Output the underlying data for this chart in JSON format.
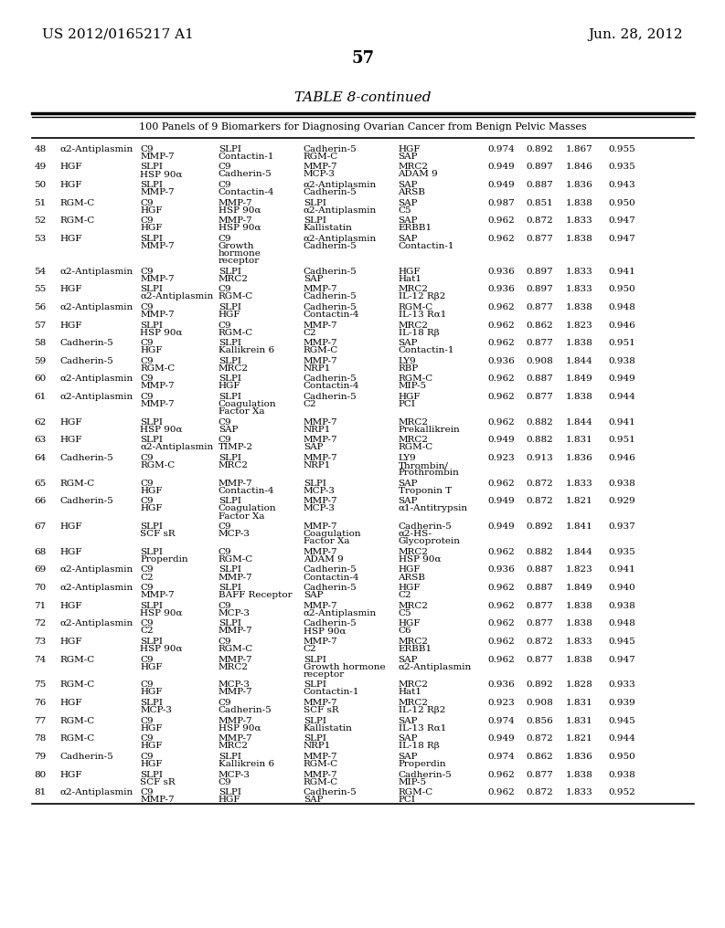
{
  "header_left": "US 2012/0165217 A1",
  "header_right": "Jun. 28, 2012",
  "page_number": "57",
  "table_title": "TABLE 8-continued",
  "table_subtitle": "100 Panels of 9 Biomarkers for Diagnosing Ovarian Cancer from Benign Pelvic Masses",
  "rows": [
    {
      "num": "48",
      "b1": "α2-Antiplasmin",
      "b2": "C9\nMMP-7",
      "b3": "SLPI\nContactin-1",
      "b4": "Cadherin-5\nRGM-C",
      "b5": "HGF\nSAP",
      "v1": "0.974",
      "v2": "0.892",
      "v3": "1.867",
      "v4": "0.955"
    },
    {
      "num": "49",
      "b1": "HGF",
      "b2": "SLPI\nHSP 90α",
      "b3": "C9\nCadherin-5",
      "b4": "MMP-7\nMCP-3",
      "b5": "MRC2\nADAM 9",
      "v1": "0.949",
      "v2": "0.897",
      "v3": "1.846",
      "v4": "0.935"
    },
    {
      "num": "50",
      "b1": "HGF",
      "b2": "SLPI\nMMP-7",
      "b3": "C9\nContactin-4",
      "b4": "α2-Antiplasmin\nCadherin-5",
      "b5": "SAP\nARSB",
      "v1": "0.949",
      "v2": "0.887",
      "v3": "1.836",
      "v4": "0.943"
    },
    {
      "num": "51",
      "b1": "RGM-C",
      "b2": "C9\nHGF",
      "b3": "MMP-7\nHSP 90α",
      "b4": "SLPI\nα2-Antiplasmin",
      "b5": "SAP\nC5",
      "v1": "0.987",
      "v2": "0.851",
      "v3": "1.838",
      "v4": "0.950"
    },
    {
      "num": "52",
      "b1": "RGM-C",
      "b2": "C9\nHGF",
      "b3": "MMP-7\nHSP 90α",
      "b4": "SLPI\nKallistatin",
      "b5": "SAP\nERBB1",
      "v1": "0.962",
      "v2": "0.872",
      "v3": "1.833",
      "v4": "0.947"
    },
    {
      "num": "53",
      "b1": "HGF",
      "b2": "SLPI\nMMP-7",
      "b3": "C9\nGrowth\nhormone\nreceptor",
      "b4": "α2-Antiplasmin\nCadherin-5",
      "b5": "SAP\nContactin-1",
      "v1": "0.962",
      "v2": "0.877",
      "v3": "1.838",
      "v4": "0.947"
    },
    {
      "num": "54",
      "b1": "α2-Antiplasmin",
      "b2": "C9\nMMP-7",
      "b3": "SLPI\nMRC2",
      "b4": "Cadherin-5\nSAP",
      "b5": "HGF\nHat1",
      "v1": "0.936",
      "v2": "0.897",
      "v3": "1.833",
      "v4": "0.941"
    },
    {
      "num": "55",
      "b1": "HGF",
      "b2": "SLPI\nα2-Antiplasmin",
      "b3": "C9\nRGM-C",
      "b4": "MMP-7\nCadherin-5",
      "b5": "MRC2\nIL-12 Rβ2",
      "v1": "0.936",
      "v2": "0.897",
      "v3": "1.833",
      "v4": "0.950"
    },
    {
      "num": "56",
      "b1": "α2-Antiplasmin",
      "b2": "C9\nMMP-7",
      "b3": "SLPI\nHGF",
      "b4": "Cadherin-5\nContactin-4",
      "b5": "RGM-C\nIL-13 Rα1",
      "v1": "0.962",
      "v2": "0.877",
      "v3": "1.838",
      "v4": "0.948"
    },
    {
      "num": "57",
      "b1": "HGF",
      "b2": "SLPI\nHSP 90α",
      "b3": "C9\nRGM-C",
      "b4": "MMP-7\nC2",
      "b5": "MRC2\nIL-18 Rβ",
      "v1": "0.962",
      "v2": "0.862",
      "v3": "1.823",
      "v4": "0.946"
    },
    {
      "num": "58",
      "b1": "Cadherin-5",
      "b2": "C9\nHGF",
      "b3": "SLPI\nKallikrein 6",
      "b4": "MMP-7\nRGM-C",
      "b5": "SAP\nContactin-1",
      "v1": "0.962",
      "v2": "0.877",
      "v3": "1.838",
      "v4": "0.951"
    },
    {
      "num": "59",
      "b1": "Cadherin-5",
      "b2": "C9\nRGM-C",
      "b3": "SLPI\nMRC2",
      "b4": "MMP-7\nNRP1",
      "b5": "LY9\nRBP",
      "v1": "0.936",
      "v2": "0.908",
      "v3": "1.844",
      "v4": "0.938"
    },
    {
      "num": "60",
      "b1": "α2-Antiplasmin",
      "b2": "C9\nMMP-7",
      "b3": "SLPI\nHGF",
      "b4": "Cadherin-5\nContactin-4",
      "b5": "RGM-C\nMIP-5",
      "v1": "0.962",
      "v2": "0.887",
      "v3": "1.849",
      "v4": "0.949"
    },
    {
      "num": "61",
      "b1": "α2-Antiplasmin",
      "b2": "C9\nMMP-7",
      "b3": "SLPI\nCoagulation\nFactor Xa",
      "b4": "Cadherin-5\nC2",
      "b5": "HGF\nPCI",
      "v1": "0.962",
      "v2": "0.877",
      "v3": "1.838",
      "v4": "0.944"
    },
    {
      "num": "62",
      "b1": "HGF",
      "b2": "SLPI\nHSP 90α",
      "b3": "C9\nSAP",
      "b4": "MMP-7\nNRP1",
      "b5": "MRC2\nPrekallikrein",
      "v1": "0.962",
      "v2": "0.882",
      "v3": "1.844",
      "v4": "0.941"
    },
    {
      "num": "63",
      "b1": "HGF",
      "b2": "SLPI\nα2-Antiplasmin",
      "b3": "C9\nTIMP-2",
      "b4": "MMP-7\nSAP",
      "b5": "MRC2\nRGM-C",
      "v1": "0.949",
      "v2": "0.882",
      "v3": "1.831",
      "v4": "0.951"
    },
    {
      "num": "64",
      "b1": "Cadherin-5",
      "b2": "C9\nRGM-C",
      "b3": "SLPI\nMRC2",
      "b4": "MMP-7\nNRP1",
      "b5": "LY9\nThrombin/\nProthrombin",
      "v1": "0.923",
      "v2": "0.913",
      "v3": "1.836",
      "v4": "0.946"
    },
    {
      "num": "65",
      "b1": "RGM-C",
      "b2": "C9\nHGF",
      "b3": "MMP-7\nContactin-4",
      "b4": "SLPI\nMCP-3",
      "b5": "SAP\nTroponin T",
      "v1": "0.962",
      "v2": "0.872",
      "v3": "1.833",
      "v4": "0.938"
    },
    {
      "num": "66",
      "b1": "Cadherin-5",
      "b2": "C9\nHGF",
      "b3": "SLPI\nCoagulation\nFactor Xa",
      "b4": "MMP-7\nMCP-3",
      "b5": "SAP\nα1-Antitrypsin",
      "v1": "0.949",
      "v2": "0.872",
      "v3": "1.821",
      "v4": "0.929"
    },
    {
      "num": "67",
      "b1": "HGF",
      "b2": "SLPI\nSCF sR",
      "b3": "C9\nMCP-3",
      "b4": "MMP-7\nCoagulation\nFactor Xa",
      "b5": "Cadherin-5\nα2-HS-\nGlycoprotein",
      "v1": "0.949",
      "v2": "0.892",
      "v3": "1.841",
      "v4": "0.937"
    },
    {
      "num": "68",
      "b1": "HGF",
      "b2": "SLPI\nProperdin",
      "b3": "C9\nRGM-C",
      "b4": "MMP-7\nADAM 9",
      "b5": "MRC2\nHSP 90α",
      "v1": "0.962",
      "v2": "0.882",
      "v3": "1.844",
      "v4": "0.935"
    },
    {
      "num": "69",
      "b1": "α2-Antiplasmin",
      "b2": "C9\nC2",
      "b3": "SLPI\nMMP-7",
      "b4": "Cadherin-5\nContactin-4",
      "b5": "HGF\nARSB",
      "v1": "0.936",
      "v2": "0.887",
      "v3": "1.823",
      "v4": "0.941"
    },
    {
      "num": "70",
      "b1": "α2-Antiplasmin",
      "b2": "C9\nMMP-7",
      "b3": "SLPI\nBAFF Receptor",
      "b4": "Cadherin-5\nSAP",
      "b5": "HGF\nC2",
      "v1": "0.962",
      "v2": "0.887",
      "v3": "1.849",
      "v4": "0.940"
    },
    {
      "num": "71",
      "b1": "HGF",
      "b2": "SLPI\nHSP 90α",
      "b3": "C9\nMCP-3",
      "b4": "MMP-7\nα2-Antiplasmin",
      "b5": "MRC2\nC5",
      "v1": "0.962",
      "v2": "0.877",
      "v3": "1.838",
      "v4": "0.938"
    },
    {
      "num": "72",
      "b1": "α2-Antiplasmin",
      "b2": "C9\nC2",
      "b3": "SLPI\nMMP-7",
      "b4": "Cadherin-5\nHSP 90α",
      "b5": "HGF\nC6",
      "v1": "0.962",
      "v2": "0.877",
      "v3": "1.838",
      "v4": "0.948"
    },
    {
      "num": "73",
      "b1": "HGF",
      "b2": "SLPI\nHSP 90α",
      "b3": "C9\nRGM-C",
      "b4": "MMP-7\nC2",
      "b5": "MRC2\nERBB1",
      "v1": "0.962",
      "v2": "0.872",
      "v3": "1.833",
      "v4": "0.945"
    },
    {
      "num": "74",
      "b1": "RGM-C",
      "b2": "C9\nHGF",
      "b3": "MMP-7\nMRC2",
      "b4": "SLPI\nGrowth hormone\nreceptor",
      "b5": "SAP\nα2-Antiplasmin",
      "v1": "0.962",
      "v2": "0.877",
      "v3": "1.838",
      "v4": "0.947"
    },
    {
      "num": "75",
      "b1": "RGM-C",
      "b2": "C9\nHGF",
      "b3": "MCP-3\nMMP-7",
      "b4": "SLPI\nContactin-1",
      "b5": "MRC2\nHat1",
      "v1": "0.936",
      "v2": "0.892",
      "v3": "1.828",
      "v4": "0.933"
    },
    {
      "num": "76",
      "b1": "HGF",
      "b2": "SLPI\nMCP-3",
      "b3": "C9\nCadherin-5",
      "b4": "MMP-7\nSCF sR",
      "b5": "MRC2\nIL-12 Rβ2",
      "v1": "0.923",
      "v2": "0.908",
      "v3": "1.831",
      "v4": "0.939"
    },
    {
      "num": "77",
      "b1": "RGM-C",
      "b2": "C9\nHGF",
      "b3": "MMP-7\nHSP 90α",
      "b4": "SLPI\nKallistatin",
      "b5": "SAP\nIL-13 Rα1",
      "v1": "0.974",
      "v2": "0.856",
      "v3": "1.831",
      "v4": "0.945"
    },
    {
      "num": "78",
      "b1": "RGM-C",
      "b2": "C9\nHGF",
      "b3": "MMP-7\nMRC2",
      "b4": "SLPI\nNRP1",
      "b5": "SAP\nIL-18 Rβ",
      "v1": "0.949",
      "v2": "0.872",
      "v3": "1.821",
      "v4": "0.944"
    },
    {
      "num": "79",
      "b1": "Cadherin-5",
      "b2": "C9\nHGF",
      "b3": "SLPI\nKallikrein 6",
      "b4": "MMP-7\nRGM-C",
      "b5": "SAP\nProperdin",
      "v1": "0.974",
      "v2": "0.862",
      "v3": "1.836",
      "v4": "0.950"
    },
    {
      "num": "80",
      "b1": "HGF",
      "b2": "SLPI\nSCF sR",
      "b3": "MCP-3\nC9",
      "b4": "MMP-7\nRGM-C",
      "b5": "Cadherin-5\nMIP-5",
      "v1": "0.962",
      "v2": "0.877",
      "v3": "1.838",
      "v4": "0.938"
    },
    {
      "num": "81",
      "b1": "α2-Antiplasmin",
      "b2": "C9\nMMP-7",
      "b3": "SLPI\nHGF",
      "b4": "Cadherin-5\nSAP",
      "b5": "RGM-C\nPCI",
      "v1": "0.962",
      "v2": "0.872",
      "v3": "1.833",
      "v4": "0.952"
    }
  ]
}
